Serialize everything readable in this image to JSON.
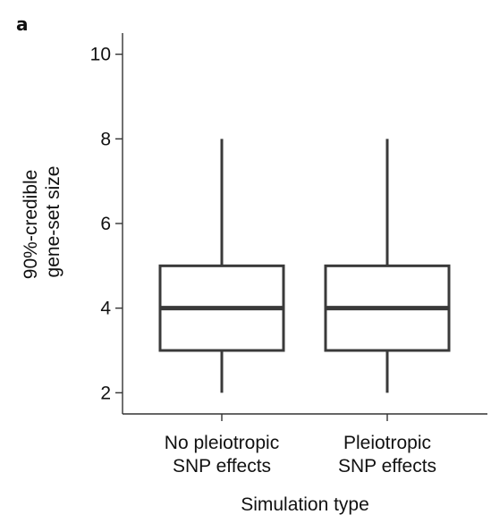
{
  "panel_label": "a",
  "chart_data": {
    "type": "box",
    "xlabel": "Simulation type",
    "ylabel_lines": [
      "90%-credible",
      "gene-set size"
    ],
    "ylim": [
      1.5,
      10.5
    ],
    "yticks": [
      2,
      4,
      6,
      8,
      10
    ],
    "categories": [
      {
        "label_lines": [
          "No pleiotropic",
          "SNP effects"
        ],
        "min": 2,
        "q1": 3,
        "median": 4,
        "q3": 5,
        "max": 8
      },
      {
        "label_lines": [
          "Pleiotropic",
          "SNP effects"
        ],
        "min": 2,
        "q1": 3,
        "median": 4,
        "q3": 5,
        "max": 8
      }
    ]
  }
}
